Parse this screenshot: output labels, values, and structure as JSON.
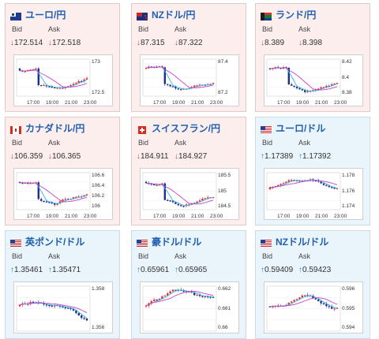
{
  "labels": {
    "bid": "Bid",
    "ask": "Ask"
  },
  "colors": {
    "down_bg": "#fdeeee",
    "up_bg": "#eaf4fb",
    "pair_text": "#1f5fb0",
    "down_arrow": "#d9423a",
    "up_arrow": "#1f7fcf"
  },
  "cards": [
    {
      "pair": "ユーロ/円",
      "flag": "eu-flag-icon",
      "trend": "down",
      "arrow": "↓",
      "bid": "172.514",
      "ask": "172.518",
      "yticks": [
        "173",
        "172.5"
      ],
      "xticks": [
        "17:00",
        "19:00",
        "21:00",
        "23:00"
      ]
    },
    {
      "pair": "NZドル/円",
      "flag": "nz-flag-icon",
      "trend": "down",
      "arrow": "↓",
      "bid": "87.315",
      "ask": "87.322",
      "yticks": [
        "87.4",
        "87.2"
      ],
      "xticks": [
        "17:00",
        "19:00",
        "21:00",
        "23:00"
      ]
    },
    {
      "pair": "ランド/円",
      "flag": "za-flag-icon",
      "trend": "down",
      "arrow": "↓",
      "bid": "8.389",
      "ask": "8.398",
      "yticks": [
        "8.42",
        "8.4",
        "8.38"
      ],
      "xticks": [
        "17:00",
        "19:00",
        "21:00",
        "23:00"
      ]
    },
    {
      "pair": "カナダドル/円",
      "flag": "ca-flag-icon",
      "trend": "down",
      "arrow": "↓",
      "bid": "106.359",
      "ask": "106.365",
      "yticks": [
        "106.6",
        "106.4",
        "106.2",
        "106"
      ],
      "xticks": [
        "17:00",
        "19:00",
        "21:00",
        "23:00"
      ]
    },
    {
      "pair": "スイスフラン/円",
      "flag": "ch-flag-icon",
      "trend": "down",
      "arrow": "↓",
      "bid": "184.911",
      "ask": "184.927",
      "yticks": [
        "185.5",
        "185",
        "184.5"
      ],
      "xticks": [
        "17:00",
        "19:00",
        "21:00",
        "23:00"
      ]
    },
    {
      "pair": "ユーロ/ドル",
      "flag": "us-flag-icon",
      "trend": "up",
      "arrow": "↑",
      "bid": "1.17389",
      "ask": "1.17392",
      "yticks": [
        "1.178",
        "1.176",
        "1.174"
      ],
      "xticks": [
        "17:00",
        "19:00",
        "21:00",
        "23:00"
      ]
    },
    {
      "pair": "英ポンド/ドル",
      "flag": "us-flag-icon",
      "trend": "up",
      "arrow": "↑",
      "bid": "1.35461",
      "ask": "1.35471",
      "yticks": [
        "1.358",
        "1.356"
      ],
      "xticks": []
    },
    {
      "pair": "豪ドル/ドル",
      "flag": "us-flag-icon",
      "trend": "up",
      "arrow": "↑",
      "bid": "0.65961",
      "ask": "0.65965",
      "yticks": [
        "0.662",
        "0.661",
        "0.66"
      ],
      "xticks": []
    },
    {
      "pair": "NZドル/ドル",
      "flag": "us-flag-icon",
      "trend": "up",
      "arrow": "↑",
      "bid": "0.59409",
      "ask": "0.59423",
      "yticks": [
        "0.596",
        "0.595",
        "0.594"
      ],
      "xticks": []
    }
  ]
}
